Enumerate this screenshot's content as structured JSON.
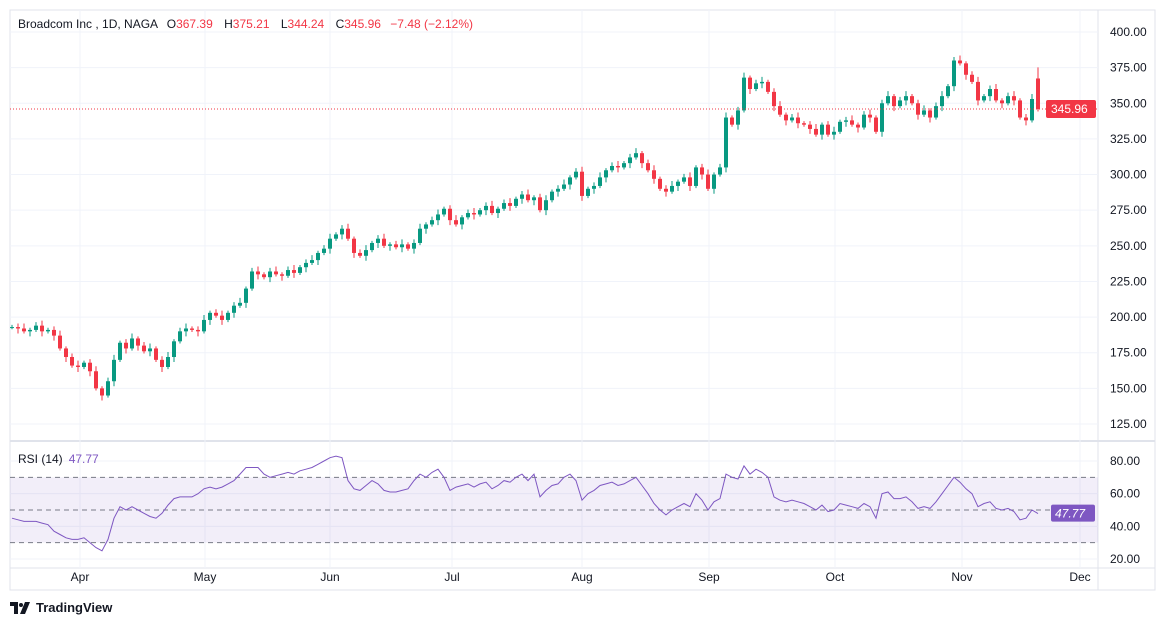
{
  "header": {
    "symbol": "Broadcom Inc , 1D, NAGA",
    "open_label": "O",
    "open": "367.39",
    "high_label": "H",
    "high": "375.21",
    "low_label": "L",
    "low": "344.24",
    "close_label": "C",
    "close": "345.96",
    "change": "−7.48 (−2.12%)"
  },
  "rsi_legend": {
    "label": "RSI (14)",
    "value": "47.77"
  },
  "branding": {
    "logo_text": "TradingView"
  },
  "colors": {
    "up": "#089981",
    "down": "#f23645",
    "rsi": "#7e57c2",
    "grid": "#f0f3fa"
  },
  "chart_data": [
    {
      "type": "candlestick",
      "title": "Broadcom Inc , 1D, NAGA",
      "y_ticks": [
        "400.00",
        "375.00",
        "350.00",
        "325.00",
        "300.00",
        "275.00",
        "250.00",
        "225.00",
        "200.00",
        "175.00",
        "150.00",
        "125.00"
      ],
      "ylim": [
        125,
        400
      ],
      "x_ticks": [
        "Apr",
        "May",
        "Jun",
        "Jul",
        "Aug",
        "Sep",
        "Oct",
        "Nov",
        "Dec"
      ],
      "last_price_label": "345.96",
      "last_bar": {
        "open": 367.39,
        "high": 375.21,
        "low": 344.24,
        "close": 345.96
      },
      "closes": [
        193,
        192,
        190,
        191,
        194,
        190,
        191,
        187,
        178,
        172,
        166,
        165,
        168,
        162,
        150,
        145,
        155,
        170,
        182,
        178,
        185,
        180,
        176,
        178,
        170,
        165,
        172,
        183,
        190,
        192,
        191,
        190,
        198,
        203,
        201,
        198,
        203,
        208,
        210,
        220,
        232,
        230,
        228,
        232,
        230,
        229,
        233,
        231,
        235,
        238,
        240,
        245,
        248,
        255,
        258,
        262,
        255,
        245,
        243,
        247,
        252,
        255,
        250,
        251,
        249,
        251,
        248,
        252,
        262,
        265,
        268,
        272,
        276,
        268,
        265,
        270,
        273,
        272,
        275,
        278,
        273,
        276,
        280,
        278,
        283,
        286,
        282,
        284,
        275,
        282,
        288,
        290,
        293,
        298,
        302,
        285,
        290,
        292,
        298,
        303,
        306,
        305,
        308,
        312,
        315,
        308,
        303,
        297,
        290,
        288,
        292,
        295,
        298,
        292,
        305,
        300,
        290,
        300,
        305,
        340,
        335,
        345,
        368,
        360,
        364,
        365,
        358,
        348,
        342,
        338,
        340,
        336,
        335,
        332,
        328,
        335,
        328,
        330,
        337,
        338,
        335,
        333,
        342,
        340,
        330,
        350,
        355,
        348,
        352,
        355,
        350,
        342,
        345,
        340,
        348,
        355,
        362,
        380,
        378,
        370,
        365,
        352,
        355,
        360,
        352,
        350,
        355,
        352,
        340,
        338,
        353,
        345.96
      ],
      "grid": true
    },
    {
      "type": "line",
      "title": "RSI (14)",
      "y_ticks": [
        "80.00",
        "60.00",
        "40.00",
        "20.00"
      ],
      "ylim": [
        20,
        80
      ],
      "bands": {
        "upper": 70,
        "middle": 50,
        "lower": 30
      },
      "last_value_label": "47.77",
      "values": [
        45,
        44,
        43,
        43,
        43,
        42,
        41,
        37,
        35,
        33,
        32,
        32,
        33,
        30,
        27,
        25,
        32,
        45,
        52,
        50,
        52,
        50,
        48,
        46,
        45,
        48,
        53,
        57,
        58,
        58,
        58,
        60,
        63,
        64,
        63,
        64,
        66,
        68,
        72,
        76,
        76,
        76,
        72,
        70,
        71,
        72,
        73,
        72,
        74,
        75,
        76,
        78,
        80,
        82,
        83,
        82,
        68,
        63,
        62,
        65,
        68,
        66,
        62,
        61,
        61,
        62,
        63,
        68,
        72,
        70,
        73,
        75,
        70,
        62,
        64,
        65,
        66,
        64,
        66,
        67,
        63,
        65,
        68,
        67,
        70,
        72,
        68,
        72,
        58,
        62,
        65,
        66,
        70,
        72,
        68,
        56,
        60,
        62,
        65,
        66,
        67,
        65,
        66,
        68,
        70,
        65,
        60,
        54,
        50,
        47,
        50,
        52,
        54,
        52,
        60,
        56,
        50,
        55,
        57,
        72,
        70,
        69,
        77,
        72,
        75,
        73,
        70,
        58,
        56,
        55,
        56,
        55,
        54,
        52,
        50,
        53,
        49,
        50,
        54,
        53,
        52,
        51,
        54,
        52,
        45,
        60,
        61,
        57,
        57,
        58,
        55,
        51,
        52,
        51,
        55,
        60,
        65,
        70,
        67,
        63,
        60,
        52,
        54,
        55,
        51,
        50,
        51,
        49,
        44,
        45,
        50,
        47.77
      ],
      "grid": true
    }
  ]
}
